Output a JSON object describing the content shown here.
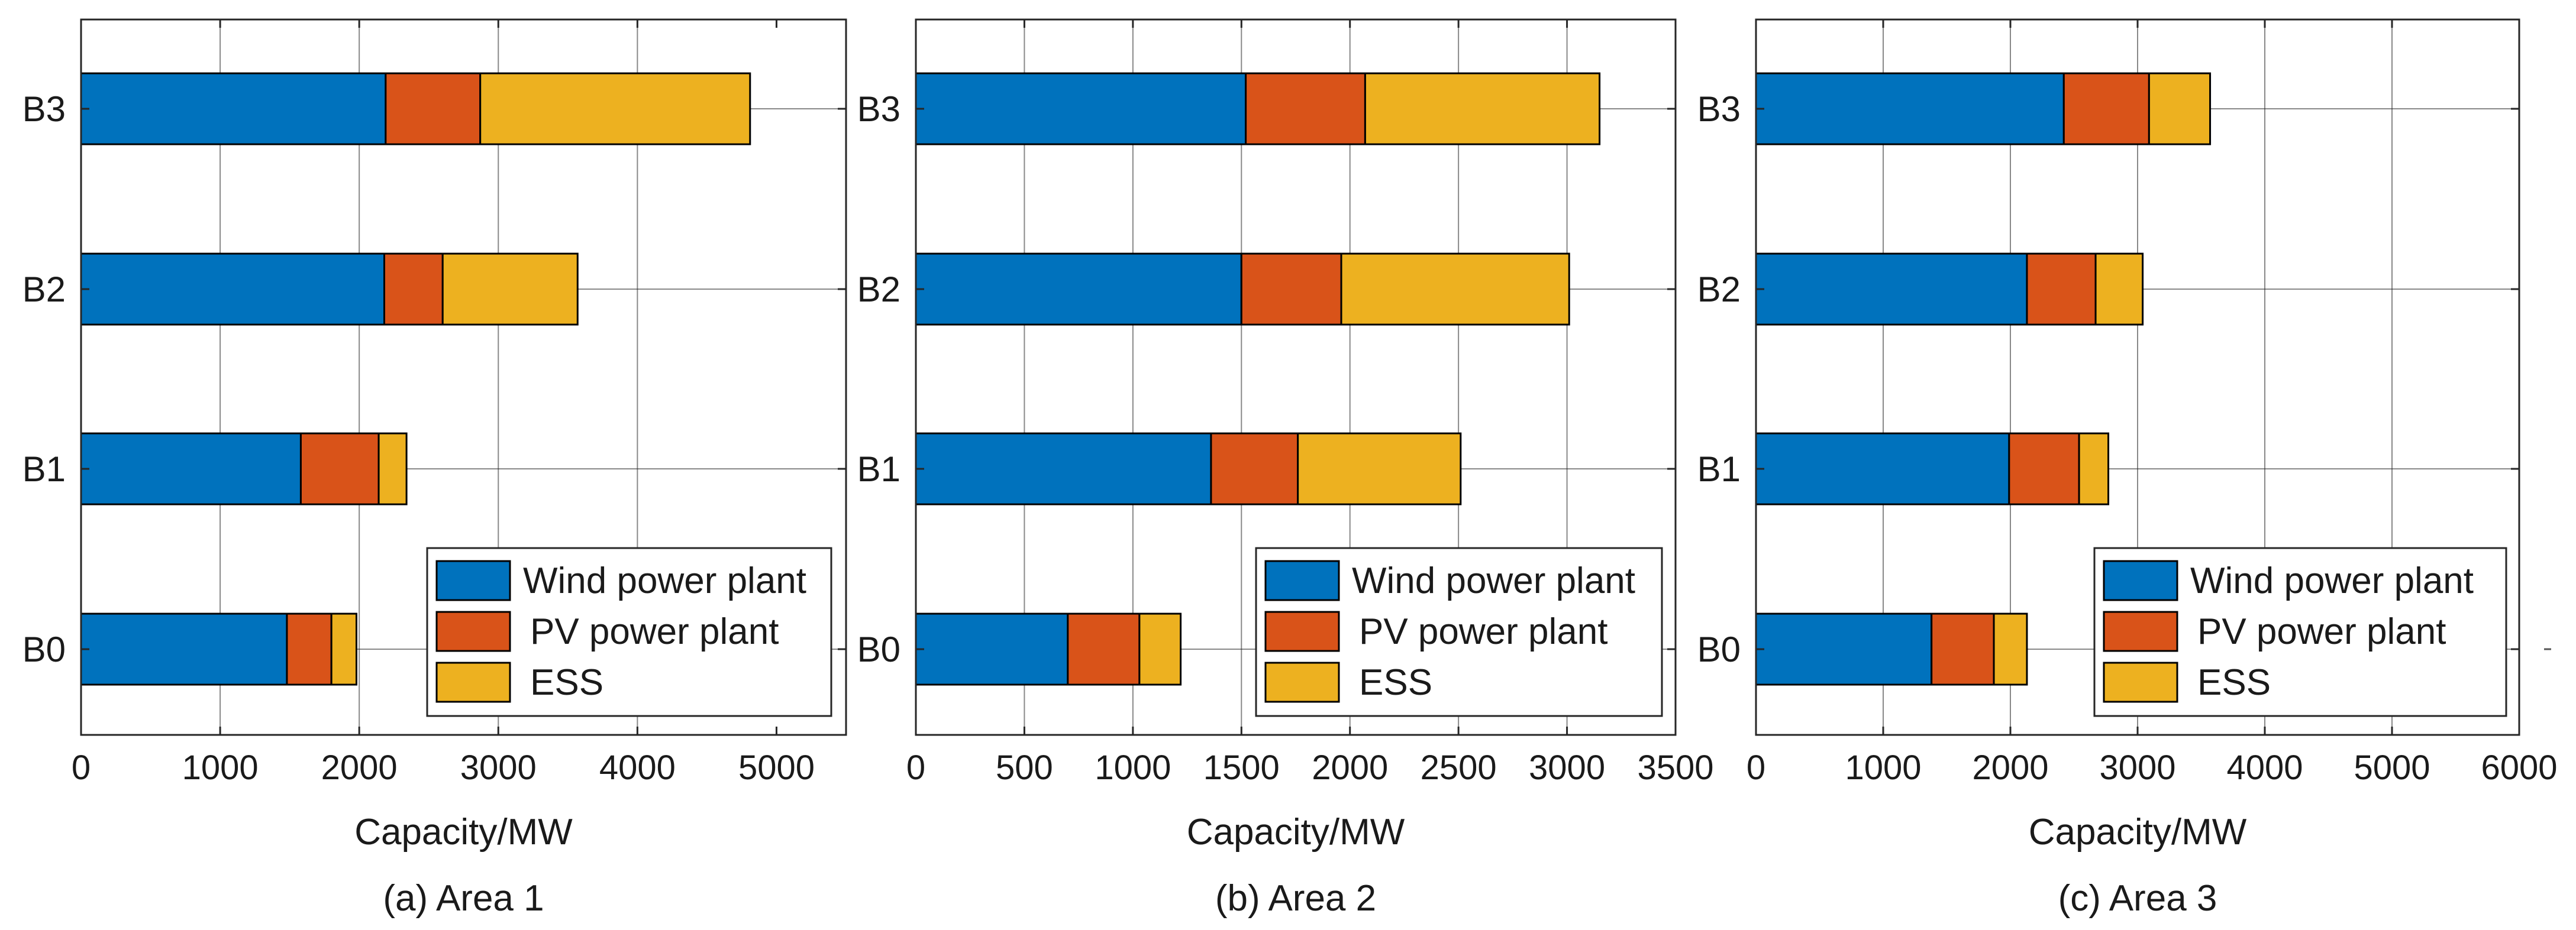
{
  "colors": {
    "wind": "#0072BD",
    "pv": "#D95319",
    "ess": "#EDB120",
    "grid": "#262626",
    "axis": "#262626"
  },
  "legend_labels": [
    "Wind power plant",
    "PV power plant",
    "ESS"
  ],
  "chart_data": [
    {
      "type": "bar",
      "orientation": "horizontal",
      "stacked": true,
      "caption": "(a) Area 1",
      "xlabel": "Capacity/MW",
      "ylabel": "",
      "xlim": [
        0,
        5500
      ],
      "xticks": [
        0,
        1000,
        2000,
        3000,
        4000,
        5000
      ],
      "categories": [
        "B0",
        "B1",
        "B2",
        "B3"
      ],
      "grid": true,
      "legend_position": "bottom-right",
      "series": [
        {
          "name": "Wind power plant",
          "values": [
            1480,
            1580,
            2180,
            2190
          ]
        },
        {
          "name": "PV power plant",
          "values": [
            320,
            560,
            420,
            680
          ]
        },
        {
          "name": "ESS",
          "values": [
            180,
            200,
            970,
            1940
          ]
        }
      ]
    },
    {
      "type": "bar",
      "orientation": "horizontal",
      "stacked": true,
      "caption": "(b) Area 2",
      "xlabel": "Capacity/MW",
      "ylabel": "",
      "xlim": [
        0,
        3500
      ],
      "xticks": [
        0,
        500,
        1000,
        1500,
        2000,
        2500,
        3000,
        3500
      ],
      "categories": [
        "B0",
        "B1",
        "B2",
        "B3"
      ],
      "grid": true,
      "legend_position": "bottom-right",
      "series": [
        {
          "name": "Wind power plant",
          "values": [
            700,
            1360,
            1500,
            1520
          ]
        },
        {
          "name": "PV power plant",
          "values": [
            330,
            400,
            460,
            550
          ]
        },
        {
          "name": "ESS",
          "values": [
            190,
            750,
            1050,
            1080
          ]
        }
      ]
    },
    {
      "type": "bar",
      "orientation": "horizontal",
      "stacked": true,
      "caption": "(c) Area 3",
      "xlabel": "Capacity/MW",
      "ylabel": "",
      "xlim": [
        0,
        6000
      ],
      "xticks": [
        0,
        1000,
        2000,
        3000,
        4000,
        5000,
        6000
      ],
      "categories": [
        "B0",
        "B1",
        "B2",
        "B3"
      ],
      "grid": true,
      "legend_position": "bottom-right",
      "series": [
        {
          "name": "Wind power plant",
          "values": [
            1380,
            1990,
            2130,
            2420
          ]
        },
        {
          "name": "PV power plant",
          "values": [
            490,
            550,
            540,
            670
          ]
        },
        {
          "name": "ESS",
          "values": [
            260,
            230,
            370,
            480
          ]
        }
      ]
    }
  ]
}
